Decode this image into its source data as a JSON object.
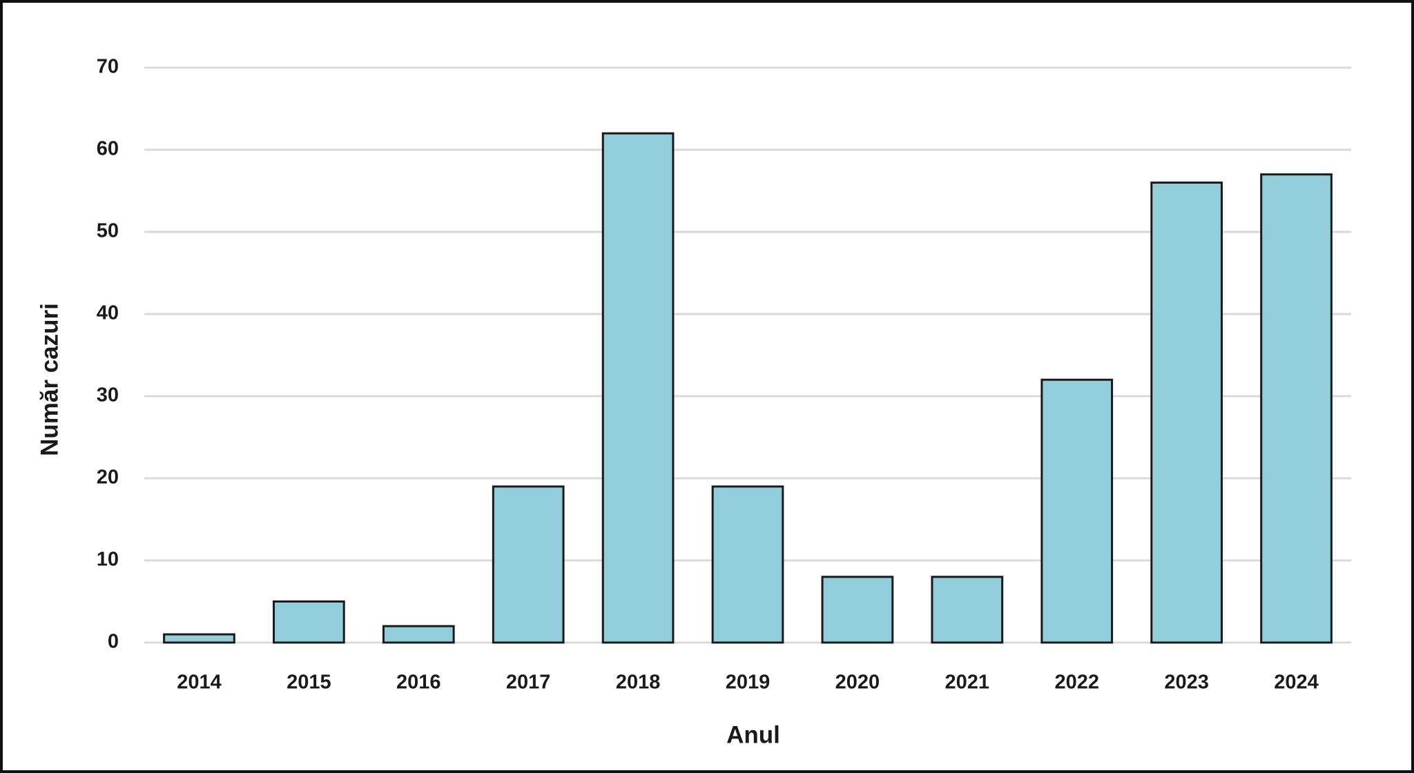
{
  "chart_data": {
    "type": "bar",
    "x_label": "Anul",
    "y_label": "Număr cazuri",
    "categories": [
      "2014",
      "2015",
      "2016",
      "2017",
      "2018",
      "2019",
      "2020",
      "2021",
      "2022",
      "2023",
      "2024"
    ],
    "values": [
      1,
      5,
      2,
      19,
      62,
      19,
      8,
      8,
      32,
      56,
      57
    ],
    "color": "#92cddc",
    "ylim": [
      0,
      70
    ],
    "yticks": [
      0,
      10,
      20,
      30,
      40,
      50,
      60,
      70
    ],
    "grid": true
  }
}
